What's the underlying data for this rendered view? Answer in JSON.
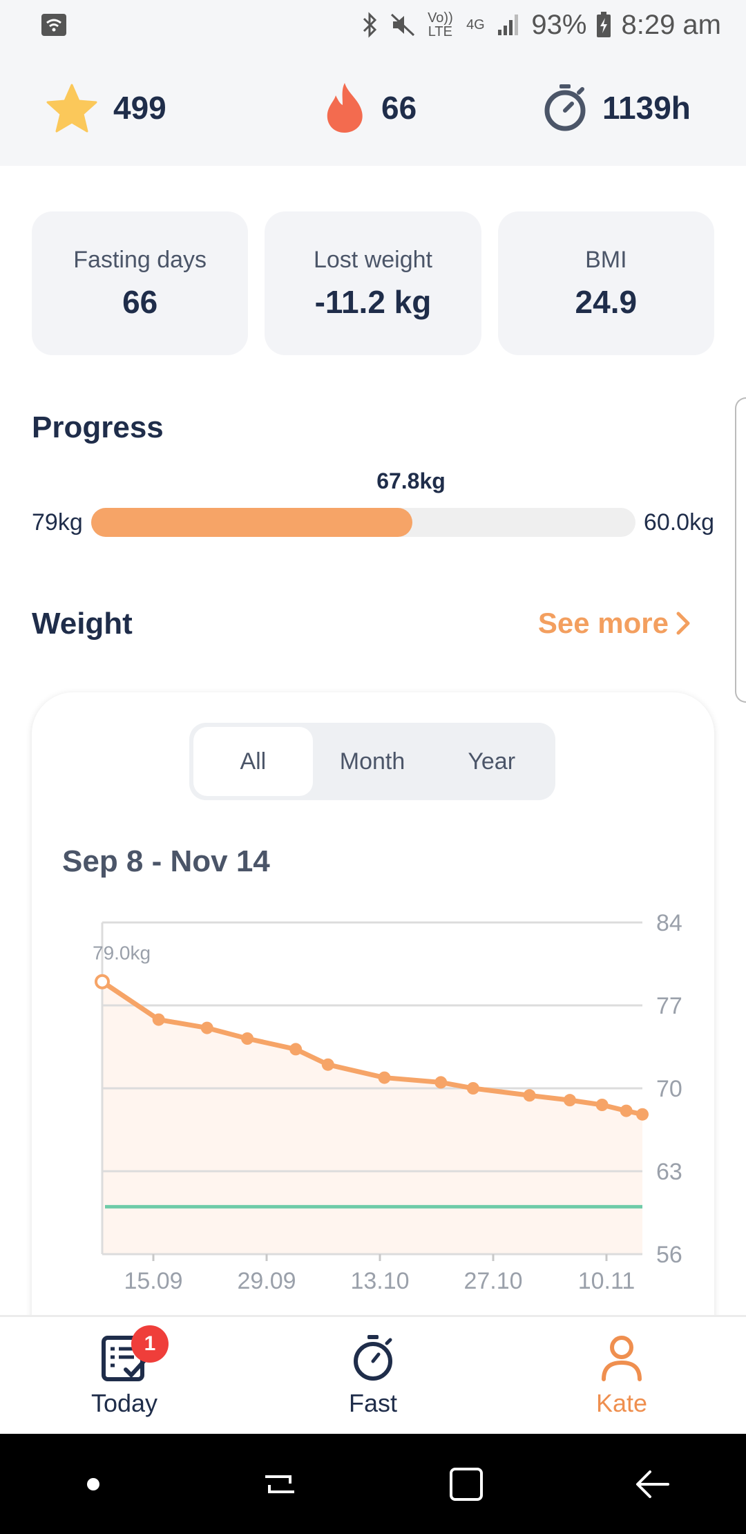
{
  "status_bar": {
    "battery": "93%",
    "time": "8:29 am",
    "volte_label": "Vo)) LTE",
    "network_label": "4G"
  },
  "stats": {
    "stars": "499",
    "streak": "66",
    "hours": "1139h"
  },
  "summary": [
    {
      "label": "Fasting days",
      "value": "66"
    },
    {
      "label": "Lost weight",
      "value": "-11.2 kg"
    },
    {
      "label": "BMI",
      "value": "24.9"
    }
  ],
  "progress": {
    "title": "Progress",
    "start": "79kg",
    "current": "67.8kg",
    "goal": "60.0kg",
    "fraction": 0.59
  },
  "weight": {
    "title": "Weight",
    "see_more": "See more",
    "tabs": [
      {
        "label": "All",
        "active": true
      },
      {
        "label": "Month",
        "active": false
      },
      {
        "label": "Year",
        "active": false
      }
    ],
    "date_range": "Sep 8 - Nov 14"
  },
  "chart_data": {
    "type": "line",
    "x": [
      "2023-09-08",
      "2023-09-15",
      "2023-09-21",
      "2023-09-26",
      "2023-10-02",
      "2023-10-06",
      "2023-10-13",
      "2023-10-20",
      "2023-10-24",
      "2023-10-31",
      "2023-11-05",
      "2023-11-09",
      "2023-11-12",
      "2023-11-14"
    ],
    "values": [
      79.0,
      75.8,
      75.1,
      74.2,
      73.3,
      72.0,
      70.9,
      70.5,
      70.0,
      69.4,
      69.0,
      68.6,
      68.1,
      67.8
    ],
    "first_label": "79.0kg",
    "goal": 60.0,
    "ylim": [
      56,
      84
    ],
    "yticks": [
      "84",
      "77",
      "70",
      "63",
      "56"
    ],
    "xticks": [
      "15.09",
      "29.09",
      "13.10",
      "27.10",
      "10.11"
    ],
    "grid": true,
    "line_color": "#f6a467",
    "goal_color": "#6ecba8"
  },
  "nav": {
    "items": [
      {
        "label": "Today",
        "icon": "checklist-icon",
        "badge": "1"
      },
      {
        "label": "Fast",
        "icon": "stopwatch-icon"
      },
      {
        "label": "Kate",
        "icon": "person-icon",
        "active": true
      }
    ]
  },
  "colors": {
    "accent": "#f39f5f",
    "navy": "#1f2d4a",
    "card_bg": "#f3f4f7"
  }
}
